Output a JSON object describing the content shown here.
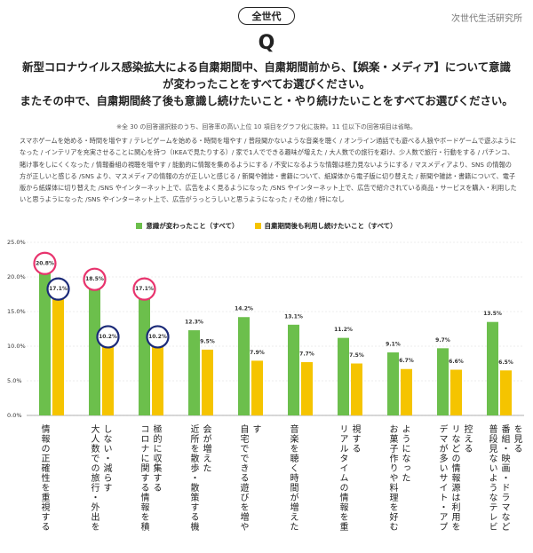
{
  "header": {
    "badge": "全世代",
    "logo": "次世代生活研究所",
    "q": "Q",
    "question": [
      "新型コロナウイルス感染拡大による自粛期間中、自粛期間前から、【娯楽・メディア】について意識が変わったことをすべてお選びください。",
      "またその中で、自粛期間終了後も意識し続けたいこと・やり続けたいことをすべてお選びください。"
    ],
    "note": "※全 30 の回答選択肢のうち、回答率の高い上位 10 項目をグラフ化に抜粋。11 位以下の回答項目は省略。",
    "choices": "スマホゲームを始める・時間を増やす / テレビゲームを始める・時間を増やす / 普段聞かないような音楽を聴く / オンライン通話でも遊べる人狼やボードゲームで遊ぶようになった / インテリアを充実させることに関心を持つ（IKEAで見たりする）/ 家で1人でできる趣味が増えた / 大人数での旅行を避け、少人数で旅行・行動をする / パチンコ、賭け事をしにくくなった / 情報番組の視聴を増やす / 能動的に情報を集めるようにする / 不安になるような情報は極力見ないようにする / マスメディアより、SNS の情報の方が正しいと感じる /SNS より、マスメディアの情報の方が正しいと感じる / 新聞や雑誌・書籍について、紙媒体から電子版に切り替えた / 新聞や雑誌・書籍について、電子版から紙媒体に切り替えた /SNS やインターネット上で、広告をよく見るようになった /SNS やインターネット上で、広告で紹介されている商品・サービスを購入・利用したいと思うようになった /SNS やインターネット上で、広告がうっとうしいと思うようになった / その他 / 特になし"
  },
  "chart_data": {
    "type": "bar",
    "categories": [
      "情報の正確性を重視する",
      "大人数での旅行・外出をしない・減らす",
      "コロナに関する情報を積極的に収集する",
      "近所を散歩・散策する機会が増えた",
      "自宅でできる遊びを増やす",
      "音楽を聴く時間が増えた",
      "リアルタイムの情報を重視する",
      "お菓子作りや料理を好むようになった",
      "デマが多いサイト・アプリなどの情報源は利用を控える",
      "普段見ないようなテレビ番組・映画・ドラマなどを見る"
    ],
    "series": [
      {
        "name": "意識が変わったこと（すべて）",
        "color": "#6cbf4c",
        "values": [
          20.8,
          18.5,
          17.1,
          12.3,
          14.2,
          13.1,
          11.2,
          9.1,
          9.7,
          13.5
        ],
        "value_labels": [
          "20.8%",
          "18.5%",
          "17.1%",
          "12.3%",
          "14.2%",
          "13.1%",
          "11.2%",
          "9.1%",
          "9.7%",
          "13.5%"
        ],
        "circled": [
          0,
          1,
          2
        ],
        "circle_color": "#e8336d"
      },
      {
        "name": "自粛期間後も利用し続けたいこと（すべて）",
        "color": "#f5c400",
        "values": [
          17.1,
          10.2,
          10.2,
          9.5,
          7.9,
          7.7,
          7.5,
          6.7,
          6.6,
          6.5
        ],
        "value_labels": [
          "17.1%",
          "10.2%",
          "10.2%",
          "9.5%",
          "7.9%",
          "7.7%",
          "7.5%",
          "6.7%",
          "6.6%",
          "6.5%"
        ],
        "circled": [
          0,
          1,
          2
        ],
        "circle_color": "#1b2a78"
      }
    ],
    "ylim": [
      0,
      25
    ],
    "yticks": [
      {
        "value": 0,
        "label": "0.0%"
      },
      {
        "value": 5,
        "label": "5.0%"
      },
      {
        "value": 10,
        "label": "10.0%"
      },
      {
        "value": 15,
        "label": "15.0%"
      },
      {
        "value": 20,
        "label": "20.0%"
      },
      {
        "value": 25,
        "label": "25.0%"
      }
    ],
    "grid": true
  }
}
